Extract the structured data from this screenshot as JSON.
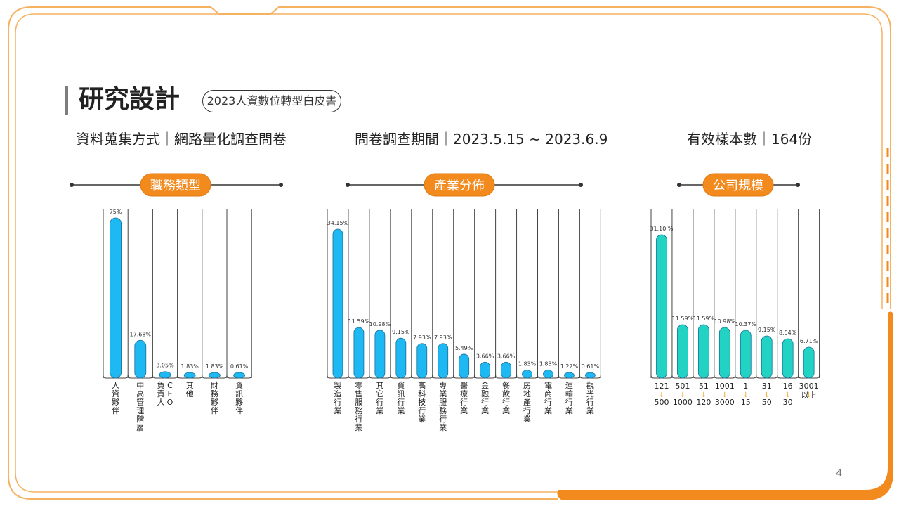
{
  "header": {
    "title": "研究設計",
    "subtitle_pill": "2023人資數位轉型白皮書"
  },
  "info": {
    "method": "資料蒐集方式｜網路量化調查問卷",
    "period": "問卷調查期間｜2023.5.15 ~ 2023.6.9",
    "sample": "有效樣本數｜164份"
  },
  "page_number": "4",
  "colors": {
    "accent_orange": "#f28a1e",
    "bar_blue": "#1eb8f2",
    "bar_teal": "#22d3c4",
    "arrow_orange": "#f2a31e"
  },
  "chart_data": [
    {
      "type": "bar",
      "title": "職務類型",
      "categories": [
        "人資夥伴",
        "中高管理階層",
        "CEO負責人",
        "其他",
        "財務夥伴",
        "資訊夥伴"
      ],
      "values": [
        75,
        17.68,
        3.05,
        1.83,
        1.83,
        0.61
      ],
      "value_labels": [
        "75%",
        "17.68%",
        "3.05%",
        "1.83%",
        "1.83%",
        "0.61%"
      ],
      "unit": "%",
      "ylim": [
        0,
        75
      ],
      "grid": false
    },
    {
      "type": "bar",
      "title": "產業分佈",
      "categories": [
        "製造行業",
        "零售服務行業",
        "其它行業",
        "資訊行業",
        "高科技行業",
        "專業服務行業",
        "醫療行業",
        "金融行業",
        "餐飲行業",
        "房地產行業",
        "電商行業",
        "運輸行業",
        "觀光行業"
      ],
      "values": [
        34.15,
        11.59,
        10.98,
        9.15,
        7.93,
        7.93,
        5.49,
        3.66,
        3.66,
        1.83,
        1.83,
        1.22,
        0.61
      ],
      "value_labels": [
        "34.15%",
        "11.59%",
        "10.98%",
        "9.15%",
        "7.93%",
        "7.93%",
        "5.49%",
        "3.66%",
        "3.66%",
        "1.83%",
        "1.83%",
        "1.22%",
        "0.61%"
      ],
      "unit": "%",
      "ylim": [
        0,
        34.15
      ],
      "grid": false
    },
    {
      "type": "bar",
      "title": "公司規模",
      "categories": [
        {
          "from": "121",
          "to": "500"
        },
        {
          "from": "501",
          "to": "1000"
        },
        {
          "from": "51",
          "to": "120"
        },
        {
          "from": "1001",
          "to": "3000"
        },
        {
          "from": "1",
          "to": "15"
        },
        {
          "from": "31",
          "to": "50"
        },
        {
          "from": "16",
          "to": "30"
        },
        {
          "from": "3001",
          "to": "以上"
        }
      ],
      "values": [
        31.1,
        11.59,
        11.59,
        10.98,
        10.37,
        9.15,
        8.54,
        6.71
      ],
      "value_labels": [
        "31.10 %",
        "11.59%",
        "11.59%",
        "10.98%",
        "10.37%",
        "9.15%",
        "8.54%",
        "6.71%"
      ],
      "unit": "%",
      "ylim": [
        0,
        31.1
      ],
      "grid": false
    }
  ]
}
